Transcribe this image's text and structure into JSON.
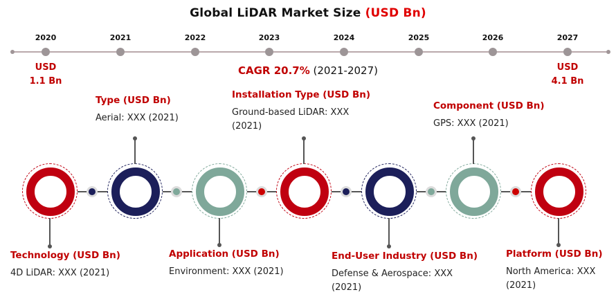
{
  "title": {
    "main": "Global LiDAR Market Size",
    "unit": "(USD Bn)"
  },
  "timeline": {
    "years": [
      "2020",
      "2021",
      "2022",
      "2023",
      "2024",
      "2025",
      "2026",
      "2027"
    ],
    "start": {
      "line1": "USD",
      "line2": "1.1 Bn"
    },
    "end": {
      "line1": "USD",
      "line2": "4.1 Bn"
    },
    "cagr_label": "CAGR 20.7%",
    "cagr_period": "(2021-2027)"
  },
  "segments": [
    {
      "heading": "Technology (USD Bn)",
      "line1": "4D LiDAR: XXX (2021)",
      "line2": ""
    },
    {
      "heading": "Type (USD Bn)",
      "line1": "Aerial: XXX (2021)",
      "line2": ""
    },
    {
      "heading": "Application (USD Bn)",
      "line1": "Environment: XXX (2021)",
      "line2": ""
    },
    {
      "heading": "Installation Type (USD Bn)",
      "line1": "Ground-based LiDAR: XXX",
      "line2": "(2021)"
    },
    {
      "heading": "End-User Industry (USD Bn)",
      "line1": "Defense & Aerospace: XXX",
      "line2": "(2021)"
    },
    {
      "heading": "Component (USD Bn)",
      "line1": "GPS: XXX (2021)",
      "line2": ""
    },
    {
      "heading": "Platform (USD Bn)",
      "line1": "North America: XXX",
      "line2": "(2021)"
    }
  ],
  "colors": {
    "red": "#c00010",
    "navy": "#1c1f5a",
    "sage": "#7fa89a",
    "accent_text": "#c00000"
  }
}
